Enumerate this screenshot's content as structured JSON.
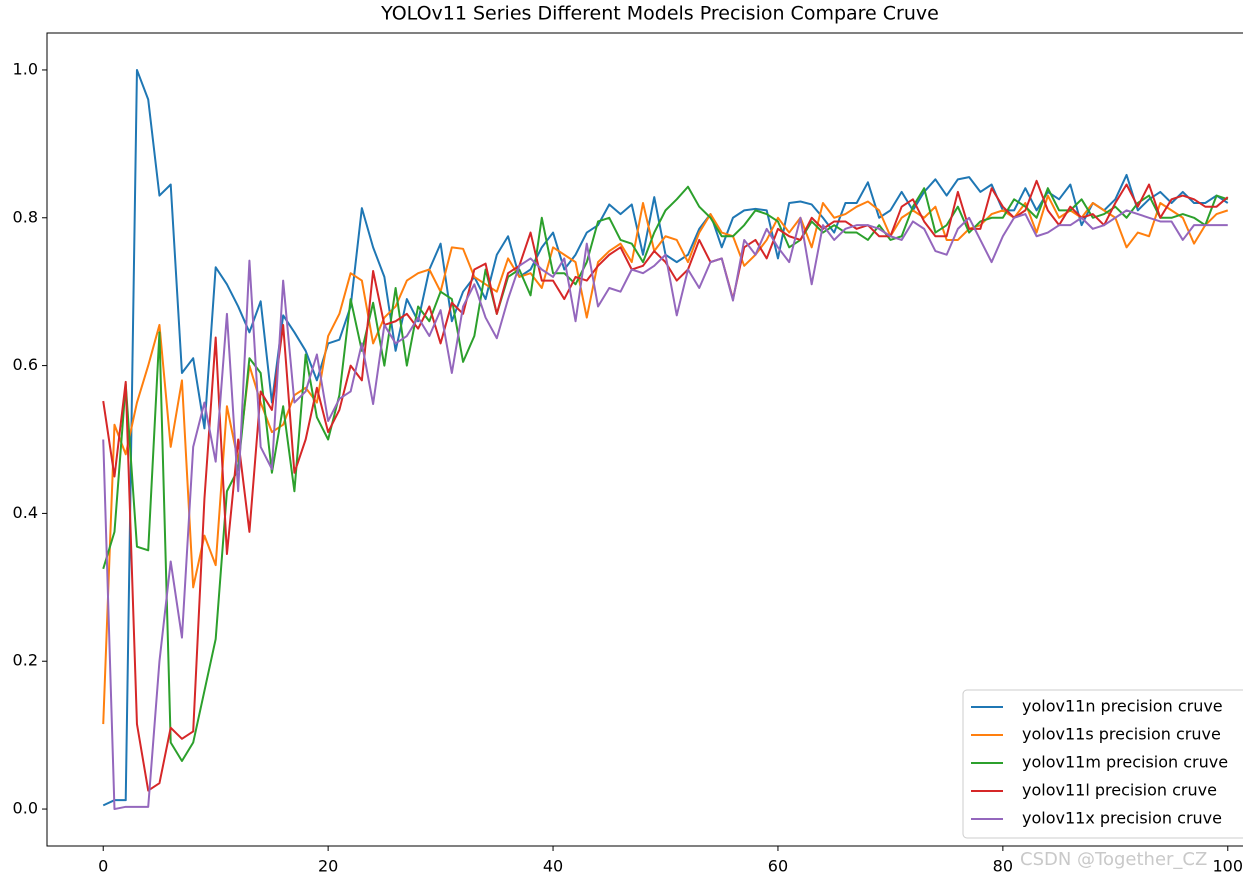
{
  "chart_data": {
    "type": "line",
    "title": "YOLOv11 Series Different Models Precision Compare Cruve",
    "watermark": "CSDN @Together_CZ",
    "x": [
      0,
      1,
      2,
      3,
      4,
      5,
      6,
      7,
      8,
      9,
      10,
      11,
      12,
      13,
      14,
      15,
      16,
      17,
      18,
      19,
      20,
      21,
      22,
      23,
      24,
      25,
      26,
      27,
      28,
      29,
      30,
      31,
      32,
      33,
      34,
      35,
      36,
      37,
      38,
      39,
      40,
      41,
      42,
      43,
      44,
      45,
      46,
      47,
      48,
      49,
      50,
      51,
      52,
      53,
      54,
      55,
      56,
      57,
      58,
      59,
      60,
      61,
      62,
      63,
      64,
      65,
      66,
      67,
      68,
      69,
      70,
      71,
      72,
      73,
      74,
      75,
      76,
      77,
      78,
      79,
      80,
      81,
      82,
      83,
      84,
      85,
      86,
      87,
      88,
      89,
      90,
      91,
      92,
      93,
      94,
      95,
      96,
      97,
      98,
      99,
      100
    ],
    "xlim": [
      -5,
      105
    ],
    "xticks": [
      0,
      20,
      40,
      60,
      80,
      100
    ],
    "ylim": [
      -0.05,
      1.05
    ],
    "yticks": [
      {
        "value": 0,
        "label": "0.0"
      },
      {
        "value": 0.2,
        "label": "0.2"
      },
      {
        "value": 0.4,
        "label": "0.4"
      },
      {
        "value": 0.6,
        "label": "0.6"
      },
      {
        "value": 0.8,
        "label": "0.8"
      },
      {
        "value": 1.0,
        "label": "1.0"
      }
    ],
    "legend": "lower right",
    "series": [
      {
        "name": "yolov11n precision cruve",
        "color": "#1f77b4",
        "values": [
          0.005,
          0.012,
          0.012,
          1.0,
          0.96,
          0.83,
          0.845,
          0.59,
          0.61,
          0.515,
          0.733,
          0.71,
          0.68,
          0.645,
          0.687,
          0.55,
          0.668,
          0.645,
          0.62,
          0.58,
          0.63,
          0.635,
          0.68,
          0.813,
          0.76,
          0.72,
          0.62,
          0.69,
          0.66,
          0.73,
          0.765,
          0.66,
          0.7,
          0.72,
          0.69,
          0.75,
          0.775,
          0.72,
          0.73,
          0.76,
          0.78,
          0.73,
          0.75,
          0.78,
          0.79,
          0.818,
          0.805,
          0.818,
          0.75,
          0.828,
          0.75,
          0.74,
          0.75,
          0.785,
          0.805,
          0.76,
          0.8,
          0.81,
          0.812,
          0.81,
          0.745,
          0.82,
          0.822,
          0.818,
          0.8,
          0.78,
          0.82,
          0.82,
          0.848,
          0.8,
          0.81,
          0.835,
          0.81,
          0.835,
          0.852,
          0.83,
          0.852,
          0.855,
          0.835,
          0.845,
          0.81,
          0.81,
          0.84,
          0.81,
          0.835,
          0.825,
          0.845,
          0.79,
          0.82,
          0.81,
          0.825,
          0.858,
          0.81,
          0.825,
          0.835,
          0.82,
          0.835,
          0.82,
          0.82,
          0.83,
          0.82
        ]
      },
      {
        "name": "yolov11s precision cruve",
        "color": "#ff7f0e",
        "values": [
          0.115,
          0.52,
          0.48,
          0.55,
          0.6,
          0.655,
          0.49,
          0.58,
          0.3,
          0.37,
          0.33,
          0.545,
          0.47,
          0.6,
          0.55,
          0.51,
          0.52,
          0.56,
          0.57,
          0.55,
          0.64,
          0.67,
          0.725,
          0.715,
          0.63,
          0.665,
          0.68,
          0.715,
          0.725,
          0.73,
          0.7,
          0.76,
          0.758,
          0.72,
          0.71,
          0.7,
          0.745,
          0.72,
          0.725,
          0.705,
          0.76,
          0.75,
          0.74,
          0.665,
          0.74,
          0.755,
          0.765,
          0.74,
          0.82,
          0.755,
          0.775,
          0.77,
          0.74,
          0.78,
          0.805,
          0.78,
          0.775,
          0.735,
          0.75,
          0.77,
          0.8,
          0.78,
          0.8,
          0.76,
          0.82,
          0.8,
          0.805,
          0.815,
          0.822,
          0.81,
          0.775,
          0.8,
          0.81,
          0.8,
          0.815,
          0.77,
          0.77,
          0.785,
          0.79,
          0.805,
          0.81,
          0.8,
          0.82,
          0.78,
          0.83,
          0.8,
          0.81,
          0.8,
          0.82,
          0.81,
          0.8,
          0.76,
          0.78,
          0.775,
          0.82,
          0.81,
          0.8,
          0.765,
          0.79,
          0.805,
          0.81
        ]
      },
      {
        "name": "yolov11m precision cruve",
        "color": "#2ca02c",
        "values": [
          0.325,
          0.375,
          0.575,
          0.355,
          0.35,
          0.645,
          0.09,
          0.065,
          0.09,
          0.16,
          0.23,
          0.43,
          0.46,
          0.61,
          0.59,
          0.455,
          0.545,
          0.43,
          0.615,
          0.53,
          0.5,
          0.56,
          0.69,
          0.62,
          0.685,
          0.6,
          0.705,
          0.6,
          0.68,
          0.66,
          0.7,
          0.69,
          0.605,
          0.64,
          0.73,
          0.67,
          0.72,
          0.73,
          0.695,
          0.8,
          0.725,
          0.725,
          0.71,
          0.74,
          0.795,
          0.8,
          0.77,
          0.765,
          0.74,
          0.78,
          0.81,
          0.825,
          0.842,
          0.815,
          0.8,
          0.775,
          0.775,
          0.79,
          0.81,
          0.805,
          0.795,
          0.76,
          0.77,
          0.795,
          0.78,
          0.79,
          0.78,
          0.78,
          0.77,
          0.79,
          0.77,
          0.775,
          0.815,
          0.84,
          0.78,
          0.79,
          0.815,
          0.78,
          0.795,
          0.8,
          0.8,
          0.825,
          0.815,
          0.8,
          0.84,
          0.81,
          0.81,
          0.825,
          0.8,
          0.805,
          0.815,
          0.8,
          0.82,
          0.83,
          0.8,
          0.8,
          0.805,
          0.8,
          0.79,
          0.83,
          0.825
        ]
      },
      {
        "name": "yolov11l precision cruve",
        "color": "#d62728",
        "values": [
          0.552,
          0.45,
          0.578,
          0.115,
          0.025,
          0.035,
          0.11,
          0.095,
          0.105,
          0.42,
          0.638,
          0.345,
          0.5,
          0.375,
          0.565,
          0.54,
          0.655,
          0.455,
          0.5,
          0.57,
          0.51,
          0.54,
          0.6,
          0.58,
          0.728,
          0.655,
          0.66,
          0.67,
          0.65,
          0.68,
          0.63,
          0.685,
          0.67,
          0.73,
          0.738,
          0.67,
          0.725,
          0.735,
          0.78,
          0.715,
          0.715,
          0.69,
          0.72,
          0.715,
          0.735,
          0.75,
          0.76,
          0.73,
          0.735,
          0.755,
          0.74,
          0.715,
          0.73,
          0.77,
          0.74,
          0.745,
          0.69,
          0.76,
          0.77,
          0.745,
          0.785,
          0.775,
          0.77,
          0.8,
          0.785,
          0.795,
          0.795,
          0.785,
          0.79,
          0.775,
          0.775,
          0.815,
          0.825,
          0.795,
          0.775,
          0.775,
          0.835,
          0.785,
          0.785,
          0.84,
          0.815,
          0.8,
          0.81,
          0.85,
          0.81,
          0.79,
          0.815,
          0.8,
          0.805,
          0.79,
          0.82,
          0.845,
          0.815,
          0.845,
          0.8,
          0.825,
          0.83,
          0.825,
          0.815,
          0.815,
          0.828
        ]
      },
      {
        "name": "yolov11x precision cruve",
        "color": "#9467bd",
        "values": [
          0.5,
          0.0,
          0.003,
          0.003,
          0.003,
          0.2,
          0.335,
          0.232,
          0.49,
          0.55,
          0.47,
          0.67,
          0.43,
          0.742,
          0.49,
          0.46,
          0.715,
          0.55,
          0.565,
          0.615,
          0.525,
          0.555,
          0.565,
          0.63,
          0.548,
          0.655,
          0.63,
          0.64,
          0.665,
          0.64,
          0.675,
          0.59,
          0.68,
          0.71,
          0.665,
          0.637,
          0.69,
          0.735,
          0.745,
          0.73,
          0.72,
          0.745,
          0.66,
          0.765,
          0.68,
          0.705,
          0.7,
          0.73,
          0.725,
          0.735,
          0.75,
          0.668,
          0.73,
          0.705,
          0.74,
          0.745,
          0.688,
          0.77,
          0.75,
          0.785,
          0.76,
          0.74,
          0.8,
          0.71,
          0.79,
          0.77,
          0.785,
          0.79,
          0.79,
          0.785,
          0.775,
          0.77,
          0.795,
          0.785,
          0.755,
          0.75,
          0.785,
          0.8,
          0.77,
          0.74,
          0.775,
          0.8,
          0.805,
          0.775,
          0.78,
          0.79,
          0.79,
          0.8,
          0.785,
          0.79,
          0.8,
          0.81,
          0.805,
          0.8,
          0.795,
          0.795,
          0.77,
          0.79,
          0.79,
          0.79,
          0.79
        ]
      }
    ]
  }
}
